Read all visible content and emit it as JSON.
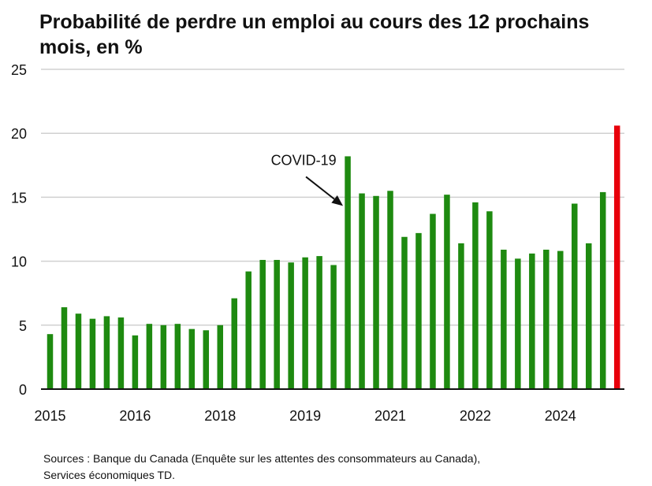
{
  "title": "Probabilité de perdre un emploi au cours des 12 prochains mois, en %",
  "sources": {
    "line1": "Sources : Banque du Canada (Enquête sur les attentes des consommateurs au Canada),",
    "line2": "Services économiques TD."
  },
  "colors": {
    "bar": "#1e8a10",
    "highlight": "#e8000b",
    "grid": "#d0d0d0",
    "axis": "#111111",
    "text": "#111111"
  },
  "chart_data": {
    "type": "bar",
    "title": "Probabilité de perdre un emploi au cours des 12 prochains mois, en %",
    "xlabel": "",
    "ylabel": "",
    "ylim": [
      0,
      25
    ],
    "yticks": [
      0,
      5,
      10,
      15,
      20,
      25
    ],
    "grid": true,
    "x_tick_labels": [
      {
        "label": "2015",
        "index": 0
      },
      {
        "label": "2016",
        "index": 6
      },
      {
        "label": "2018",
        "index": 12
      },
      {
        "label": "2019",
        "index": 18
      },
      {
        "label": "2021",
        "index": 24
      },
      {
        "label": "2022",
        "index": 30
      },
      {
        "label": "2024",
        "index": 36
      }
    ],
    "values": [
      4.3,
      6.4,
      5.9,
      5.5,
      5.7,
      5.6,
      4.2,
      5.1,
      5.0,
      5.1,
      4.7,
      4.6,
      5.0,
      7.1,
      9.2,
      10.1,
      10.1,
      9.9,
      10.3,
      10.4,
      9.7,
      18.2,
      15.3,
      15.1,
      15.5,
      11.9,
      12.2,
      13.7,
      15.2,
      11.4,
      14.6,
      13.9,
      10.9,
      10.2,
      10.6,
      10.9,
      10.8,
      14.5,
      11.4,
      15.4,
      20.6
    ],
    "highlight_index": 40,
    "annotation": {
      "text": "COVID-19",
      "target_index": 21
    }
  }
}
